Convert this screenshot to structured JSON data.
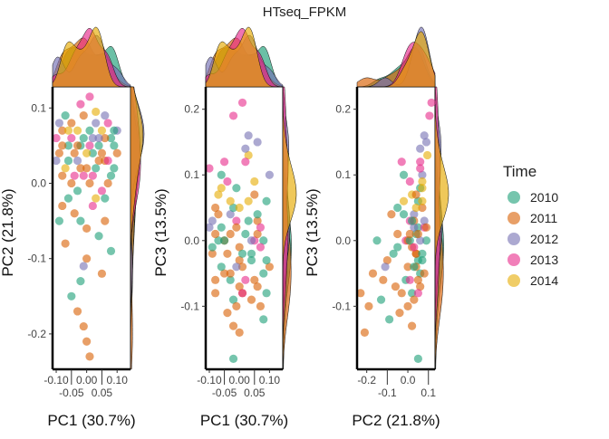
{
  "chart_data": {
    "type": "scatter",
    "title": "HTseq_FPKM",
    "legend": {
      "title": "Time",
      "placement": "right",
      "entries": [
        "2010",
        "2011",
        "2012",
        "2013",
        "2014"
      ]
    },
    "colors": {
      "2010": "#1B9E77",
      "2011": "#D95F02",
      "2012": "#7570B3",
      "2013": "#E7298A",
      "2014": "#E6AB02"
    },
    "marginal_densities": true,
    "grid": false,
    "panels": [
      {
        "x": "pc1",
        "y": "pc2",
        "xlabel": "PC1 (30.7%)",
        "ylabel": "PC2 (21.8%)",
        "xlim": [
          -0.112,
          0.144
        ],
        "ylim": [
          -0.247,
          0.128
        ],
        "xticks": [
          "-0.10",
          "-0.05",
          "0.00",
          "0.05",
          "0.10"
        ],
        "xtickvals": [
          -0.1,
          -0.05,
          0,
          0.05,
          0.1
        ],
        "yticks": [
          "0.1",
          "0.0",
          "-0.1",
          "-0.2"
        ],
        "ytickvals": [
          0.1,
          0,
          -0.1,
          -0.2
        ]
      },
      {
        "x": "pc1",
        "y": "pc3",
        "xlabel": "PC1 (30.7%)",
        "ylabel": "PC3 (13.5%)",
        "xlim": [
          -0.112,
          0.144
        ],
        "ylim": [
          -0.196,
          0.234
        ],
        "xticks": [
          "-0.10",
          "-0.05",
          "0.00",
          "0.05",
          "0.10"
        ],
        "xtickvals": [
          -0.1,
          -0.05,
          0,
          0.05,
          0.1
        ],
        "yticks": [
          "0.2",
          "0.1",
          "0.0",
          "-0.1"
        ],
        "ytickvals": [
          0.2,
          0.1,
          0,
          -0.1
        ]
      },
      {
        "x": "pc2",
        "y": "pc3",
        "xlabel": "PC2 (21.8%)",
        "ylabel": "PC3 (13.5%)",
        "xlim": [
          -0.247,
          0.132
        ],
        "ylim": [
          -0.196,
          0.234
        ],
        "xticks": [
          "-0.2",
          "-0.1",
          "0.0",
          "0.1"
        ],
        "xtickvals": [
          -0.2,
          -0.1,
          0,
          0.1
        ],
        "yticks": [
          "0.2",
          "0.1",
          "0.0",
          "-0.1"
        ],
        "ytickvals": [
          0.2,
          0.1,
          0,
          -0.1
        ]
      }
    ],
    "samples_columns": [
      "pc1",
      "pc2",
      "pc3",
      "year"
    ],
    "samples": [
      [
        0.01,
        0.115,
        0.21,
        "2013"
      ],
      [
        -0.02,
        0.105,
        0.19,
        "2013"
      ],
      [
        -0.05,
        0.06,
        0.12,
        "2013"
      ],
      [
        0.06,
        0.09,
        0.15,
        "2012"
      ],
      [
        0.03,
        0.095,
        0.13,
        "2014"
      ],
      [
        -0.08,
        0.07,
        0.05,
        "2011"
      ],
      [
        -0.06,
        0.05,
        0.02,
        "2010"
      ],
      [
        -0.04,
        0.04,
        -0.02,
        "2011"
      ],
      [
        -0.03,
        0.03,
        0.04,
        "2012"
      ],
      [
        -0.01,
        0.06,
        0.08,
        "2010"
      ],
      [
        0.0,
        0.02,
        -0.01,
        "2011"
      ],
      [
        0.02,
        0.04,
        0.01,
        "2010"
      ],
      [
        0.04,
        0.05,
        -0.03,
        "2010"
      ],
      [
        0.06,
        0.03,
        0.03,
        "2011"
      ],
      [
        0.08,
        0.06,
        -0.05,
        "2010"
      ],
      [
        0.1,
        0.07,
        0.1,
        "2012"
      ],
      [
        0.09,
        0.02,
        -0.08,
        "2010"
      ],
      [
        0.07,
        0.0,
        -0.1,
        "2011"
      ],
      [
        0.05,
        -0.01,
        0.0,
        "2013"
      ],
      [
        0.03,
        -0.02,
        0.06,
        "2014"
      ],
      [
        0.01,
        0.0,
        -0.04,
        "2011"
      ],
      [
        -0.01,
        0.01,
        0.03,
        "2013"
      ],
      [
        -0.03,
        -0.01,
        -0.06,
        "2010"
      ],
      [
        -0.05,
        0.0,
        0.0,
        "2011"
      ],
      [
        -0.07,
        0.02,
        0.07,
        "2014"
      ],
      [
        -0.09,
        0.04,
        -0.02,
        "2011"
      ],
      [
        -0.1,
        0.03,
        0.02,
        "2012"
      ],
      [
        -0.08,
        -0.03,
        -0.08,
        "2011"
      ],
      [
        -0.06,
        -0.02,
        0.1,
        "2010"
      ],
      [
        -0.04,
        -0.04,
        -0.11,
        "2011"
      ],
      [
        -0.02,
        -0.05,
        0.05,
        "2010"
      ],
      [
        0.0,
        -0.06,
        -0.07,
        "2011"
      ],
      [
        0.02,
        -0.03,
        0.12,
        "2013"
      ],
      [
        0.04,
        -0.07,
        -0.02,
        "2010"
      ],
      [
        0.06,
        -0.05,
        0.01,
        "2011"
      ],
      [
        0.08,
        -0.09,
        -0.12,
        "2010"
      ],
      [
        0.05,
        -0.12,
        -0.06,
        "2011"
      ],
      [
        0.0,
        -0.1,
        -0.03,
        "2011"
      ],
      [
        -0.02,
        -0.13,
        -0.09,
        "2010"
      ],
      [
        -0.05,
        -0.15,
        0.0,
        "2010"
      ],
      [
        -0.03,
        -0.17,
        -0.05,
        "2011"
      ],
      [
        -0.01,
        -0.19,
        -0.1,
        "2011"
      ],
      [
        0.0,
        -0.21,
        -0.14,
        "2011"
      ],
      [
        0.01,
        -0.23,
        -0.08,
        "2011"
      ],
      [
        -0.01,
        -0.11,
        -0.04,
        "2012"
      ],
      [
        -0.07,
        -0.08,
        0.04,
        "2011"
      ],
      [
        -0.09,
        -0.05,
        -0.01,
        "2010"
      ],
      [
        0.03,
        0.08,
        0.16,
        "2012"
      ],
      [
        0.05,
        0.07,
        0.09,
        "2014"
      ],
      [
        0.07,
        0.08,
        0.02,
        "2013"
      ],
      [
        0.09,
        0.05,
        0.06,
        "2010"
      ],
      [
        0.1,
        0.04,
        -0.04,
        "2011"
      ],
      [
        0.08,
        0.01,
        0.0,
        "2010"
      ],
      [
        0.06,
        0.06,
        -0.07,
        "2011"
      ],
      [
        -0.1,
        0.06,
        0.11,
        "2013"
      ],
      [
        -0.09,
        0.08,
        0.03,
        "2012"
      ],
      [
        -0.07,
        0.09,
        0.0,
        "2010"
      ],
      [
        -0.05,
        0.08,
        -0.05,
        "2011"
      ],
      [
        -0.03,
        0.07,
        0.06,
        "2014"
      ],
      [
        -0.01,
        0.09,
        0.02,
        "2011"
      ],
      [
        0.01,
        0.07,
        -0.02,
        "2010"
      ],
      [
        0.02,
        0.06,
        0.14,
        "2012"
      ],
      [
        0.04,
        0.03,
        -0.09,
        "2011"
      ],
      [
        0.0,
        0.04,
        0.05,
        "2014"
      ],
      [
        -0.02,
        0.02,
        -0.13,
        "2011"
      ],
      [
        -0.04,
        0.01,
        0.09,
        "2013"
      ],
      [
        -0.06,
        0.03,
        -0.04,
        "2010"
      ],
      [
        -0.08,
        0.01,
        0.01,
        "2011"
      ],
      [
        0.02,
        0.01,
        -0.06,
        "2013"
      ],
      [
        0.03,
        0.02,
        0.03,
        "2010"
      ],
      [
        0.05,
        0.04,
        0.07,
        "2011"
      ],
      [
        0.07,
        0.03,
        -0.01,
        "2013"
      ],
      [
        0.09,
        0.07,
        -0.03,
        "2010"
      ],
      [
        -0.02,
        0.05,
        -0.18,
        "2010"
      ],
      [
        0.04,
        0.06,
        0.0,
        "2012"
      ],
      [
        -0.06,
        0.07,
        0.08,
        "2014"
      ],
      [
        0.01,
        0.05,
        -0.08,
        "2013"
      ],
      [
        -0.03,
        0.05,
        0.01,
        "2011"
      ],
      [
        0.06,
        -0.02,
        0.04,
        "2010"
      ],
      [
        -0.08,
        0.05,
        -0.06,
        "2011"
      ]
    ]
  }
}
